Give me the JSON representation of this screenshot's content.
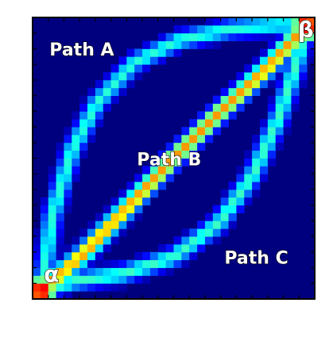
{
  "chart_data": {
    "type": "heatmap",
    "title": "",
    "xlabel": "",
    "ylabel": "",
    "xlim": [
      0,
      1
    ],
    "ylim": [
      0,
      1
    ],
    "colormap": "jet",
    "colors": {
      "low": "#00007f",
      "mid_low": "#0080ff",
      "mid": "#00ffff",
      "mid_high": "#ffff00",
      "high": "#ff0000"
    },
    "endpoints": [
      {
        "name": "α",
        "x": 0.03,
        "y": 0.03
      },
      {
        "name": "β",
        "x": 0.97,
        "y": 0.97
      }
    ],
    "paths": [
      {
        "name": "Path A",
        "intensity": 0.42,
        "points": [
          [
            0.03,
            0.03
          ],
          [
            0.07,
            0.3
          ],
          [
            0.14,
            0.53
          ],
          [
            0.23,
            0.7
          ],
          [
            0.36,
            0.84
          ],
          [
            0.52,
            0.92
          ],
          [
            0.7,
            0.96
          ],
          [
            0.88,
            0.975
          ],
          [
            0.97,
            0.97
          ]
        ]
      },
      {
        "name": "Path B",
        "intensity": 0.74,
        "points": [
          [
            0.03,
            0.03
          ],
          [
            0.18,
            0.16
          ],
          [
            0.33,
            0.32
          ],
          [
            0.5,
            0.5
          ],
          [
            0.67,
            0.67
          ],
          [
            0.83,
            0.82
          ],
          [
            0.97,
            0.97
          ]
        ]
      },
      {
        "name": "Path C",
        "intensity": 0.44,
        "points": [
          [
            0.03,
            0.03
          ],
          [
            0.15,
            0.065
          ],
          [
            0.32,
            0.09
          ],
          [
            0.5,
            0.15
          ],
          [
            0.66,
            0.27
          ],
          [
            0.78,
            0.44
          ],
          [
            0.87,
            0.64
          ],
          [
            0.93,
            0.82
          ],
          [
            0.97,
            0.97
          ]
        ]
      }
    ],
    "annotations": [
      {
        "text": "Path A",
        "x": 0.06,
        "y": 0.865
      },
      {
        "text": "Path B",
        "x": 0.37,
        "y": 0.475
      },
      {
        "text": "Path C",
        "x": 0.68,
        "y": 0.125
      },
      {
        "text": "α",
        "x": 0.04,
        "y": 0.06
      },
      {
        "text": "β",
        "x": 0.94,
        "y": 0.93
      }
    ],
    "grid": false,
    "legend": "none",
    "tick_count": 18
  }
}
